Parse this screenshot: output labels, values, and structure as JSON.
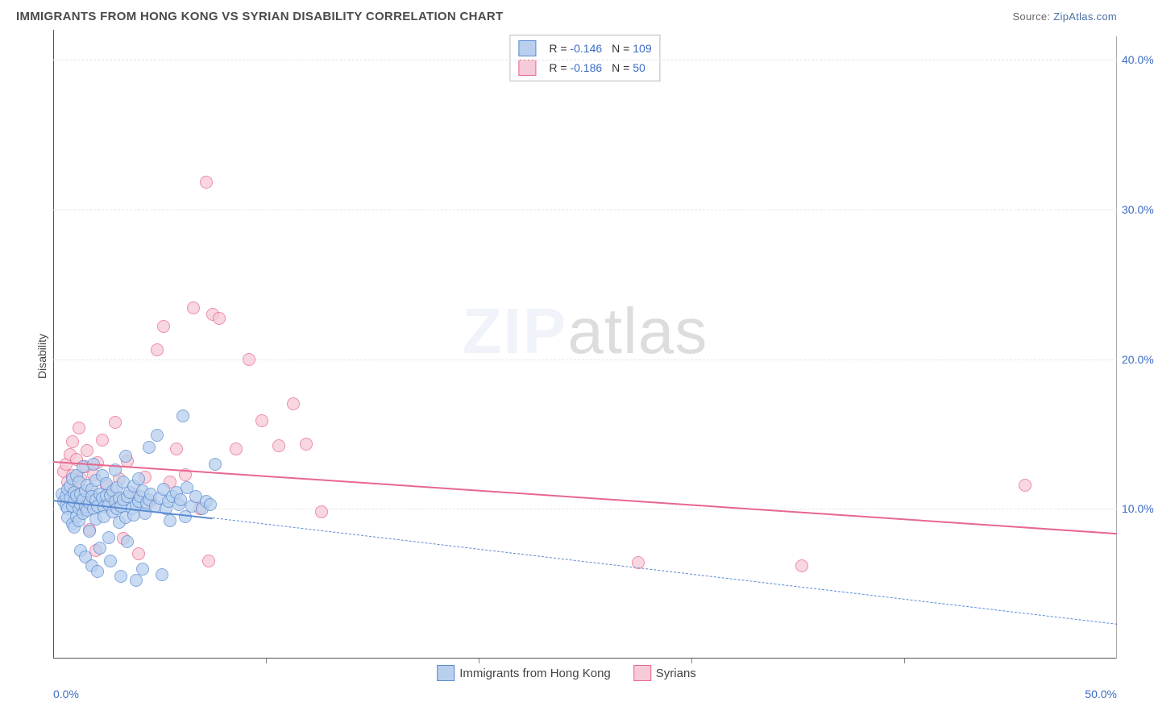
{
  "header": {
    "title": "IMMIGRANTS FROM HONG KONG VS SYRIAN DISABILITY CORRELATION CHART",
    "source_prefix": "Source: ",
    "source_link": "ZipAtlas.com"
  },
  "watermark": {
    "zip": "ZIP",
    "atlas": "atlas"
  },
  "axes": {
    "ylabel": "Disability",
    "xlim": [
      0,
      50
    ],
    "ylim": [
      0,
      42
    ],
    "yticks": [
      10,
      20,
      30,
      40
    ],
    "ytick_labels": [
      "10.0%",
      "20.0%",
      "30.0%",
      "40.0%"
    ],
    "xtick_minor_positions": [
      10,
      20,
      30,
      40
    ],
    "x_left_label": "0.0%",
    "x_right_label": "50.0%",
    "grid_color": "#e5e5e5",
    "tick_color": "#3c6cc4"
  },
  "series": {
    "hongkong": {
      "label": "Immigrants from Hong Kong",
      "color_fill": "#b8d0ee",
      "color_stroke": "#5b8bd0",
      "marker_size": 16,
      "marker_opacity": 0.75,
      "R": "-0.146",
      "N": "109",
      "trend": {
        "x1": 0,
        "y1": 10.6,
        "x2": 7.5,
        "y2": 9.4,
        "ext_x2": 50,
        "ext_y2": 2.3,
        "color": "#5b8bd0",
        "width": 2
      },
      "points": [
        [
          0.4,
          11.0
        ],
        [
          0.5,
          10.5
        ],
        [
          0.6,
          10.2
        ],
        [
          0.6,
          10.8
        ],
        [
          0.7,
          11.3
        ],
        [
          0.7,
          10.0
        ],
        [
          0.7,
          9.4
        ],
        [
          0.8,
          10.7
        ],
        [
          0.8,
          11.5
        ],
        [
          0.9,
          12.0
        ],
        [
          0.9,
          10.2
        ],
        [
          0.9,
          9.0
        ],
        [
          1.0,
          10.5
        ],
        [
          1.0,
          11.1
        ],
        [
          1.0,
          8.8
        ],
        [
          1.1,
          9.5
        ],
        [
          1.1,
          10.9
        ],
        [
          1.1,
          12.2
        ],
        [
          1.2,
          10.0
        ],
        [
          1.2,
          11.8
        ],
        [
          1.2,
          9.2
        ],
        [
          1.3,
          10.3
        ],
        [
          1.3,
          7.2
        ],
        [
          1.3,
          11.0
        ],
        [
          1.4,
          12.8
        ],
        [
          1.4,
          10.6
        ],
        [
          1.4,
          9.7
        ],
        [
          1.5,
          11.2
        ],
        [
          1.5,
          6.8
        ],
        [
          1.5,
          10.1
        ],
        [
          1.6,
          9.9
        ],
        [
          1.6,
          11.6
        ],
        [
          1.7,
          10.4
        ],
        [
          1.7,
          8.5
        ],
        [
          1.8,
          11.3
        ],
        [
          1.8,
          6.2
        ],
        [
          1.8,
          10.8
        ],
        [
          1.9,
          10.0
        ],
        [
          1.9,
          13.0
        ],
        [
          2.0,
          9.3
        ],
        [
          2.0,
          11.9
        ],
        [
          2.0,
          10.6
        ],
        [
          2.1,
          5.8
        ],
        [
          2.1,
          10.2
        ],
        [
          2.2,
          11.0
        ],
        [
          2.2,
          7.4
        ],
        [
          2.3,
          10.7
        ],
        [
          2.3,
          12.2
        ],
        [
          2.4,
          10.1
        ],
        [
          2.4,
          9.5
        ],
        [
          2.5,
          10.9
        ],
        [
          2.5,
          11.7
        ],
        [
          2.6,
          8.1
        ],
        [
          2.6,
          10.3
        ],
        [
          2.7,
          6.5
        ],
        [
          2.7,
          10.9
        ],
        [
          2.8,
          11.2
        ],
        [
          2.8,
          9.8
        ],
        [
          2.9,
          10.5
        ],
        [
          2.9,
          12.6
        ],
        [
          3.0,
          10.0
        ],
        [
          3.0,
          11.4
        ],
        [
          3.1,
          9.1
        ],
        [
          3.1,
          10.7
        ],
        [
          3.2,
          5.5
        ],
        [
          3.2,
          10.2
        ],
        [
          3.3,
          11.8
        ],
        [
          3.3,
          10.6
        ],
        [
          3.4,
          9.4
        ],
        [
          3.4,
          13.5
        ],
        [
          3.5,
          10.8
        ],
        [
          3.5,
          7.8
        ],
        [
          3.6,
          11.1
        ],
        [
          3.7,
          10.0
        ],
        [
          3.8,
          11.5
        ],
        [
          3.8,
          9.6
        ],
        [
          3.9,
          5.2
        ],
        [
          3.9,
          10.3
        ],
        [
          4.0,
          12.0
        ],
        [
          4.0,
          10.5
        ],
        [
          4.1,
          10.8
        ],
        [
          4.2,
          6.0
        ],
        [
          4.2,
          11.2
        ],
        [
          4.3,
          9.7
        ],
        [
          4.4,
          10.4
        ],
        [
          4.5,
          14.1
        ],
        [
          4.5,
          10.6
        ],
        [
          4.6,
          11.0
        ],
        [
          4.8,
          10.2
        ],
        [
          4.9,
          14.9
        ],
        [
          5.0,
          10.7
        ],
        [
          5.1,
          5.6
        ],
        [
          5.2,
          11.3
        ],
        [
          5.3,
          10.0
        ],
        [
          5.4,
          10.5
        ],
        [
          5.5,
          9.2
        ],
        [
          5.6,
          10.8
        ],
        [
          5.8,
          11.1
        ],
        [
          5.9,
          10.3
        ],
        [
          6.0,
          10.6
        ],
        [
          6.2,
          9.5
        ],
        [
          6.3,
          11.4
        ],
        [
          6.5,
          10.2
        ],
        [
          6.7,
          10.8
        ],
        [
          7.0,
          10.0
        ],
        [
          7.2,
          10.5
        ],
        [
          7.4,
          10.3
        ],
        [
          7.6,
          13.0
        ],
        [
          6.1,
          16.2
        ]
      ]
    },
    "syrian": {
      "label": "Syrians",
      "color_fill": "#f6cad6",
      "color_stroke": "#e7678f",
      "marker_size": 16,
      "marker_opacity": 0.75,
      "R": "-0.186",
      "N": "50",
      "trend": {
        "x1": 0,
        "y1": 13.2,
        "x2": 50,
        "y2": 8.4,
        "color": "#e7678f",
        "width": 2.5
      },
      "points": [
        [
          0.5,
          12.5
        ],
        [
          0.6,
          13.0
        ],
        [
          0.7,
          11.8
        ],
        [
          0.8,
          13.6
        ],
        [
          0.9,
          14.5
        ],
        [
          0.9,
          12.2
        ],
        [
          1.0,
          11.2
        ],
        [
          1.1,
          13.3
        ],
        [
          1.2,
          15.4
        ],
        [
          1.3,
          12.0
        ],
        [
          1.4,
          10.1
        ],
        [
          1.5,
          12.8
        ],
        [
          1.6,
          13.9
        ],
        [
          1.7,
          8.6
        ],
        [
          1.8,
          11.0
        ],
        [
          1.9,
          12.3
        ],
        [
          2.0,
          7.2
        ],
        [
          2.1,
          13.1
        ],
        [
          2.3,
          14.6
        ],
        [
          2.5,
          11.5
        ],
        [
          2.7,
          10.3
        ],
        [
          2.9,
          15.8
        ],
        [
          3.1,
          12.0
        ],
        [
          3.3,
          8.0
        ],
        [
          3.5,
          13.2
        ],
        [
          3.8,
          11.0
        ],
        [
          4.0,
          7.0
        ],
        [
          4.3,
          12.1
        ],
        [
          4.6,
          10.5
        ],
        [
          4.9,
          20.6
        ],
        [
          5.2,
          22.2
        ],
        [
          5.5,
          11.8
        ],
        [
          5.8,
          14.0
        ],
        [
          6.2,
          12.3
        ],
        [
          6.6,
          23.4
        ],
        [
          6.9,
          10.0
        ],
        [
          7.2,
          31.8
        ],
        [
          7.5,
          23.0
        ],
        [
          7.8,
          22.7
        ],
        [
          7.3,
          6.5
        ],
        [
          8.6,
          14.0
        ],
        [
          9.2,
          20.0
        ],
        [
          9.8,
          15.9
        ],
        [
          10.6,
          14.2
        ],
        [
          11.3,
          17.0
        ],
        [
          11.9,
          14.3
        ],
        [
          12.6,
          9.8
        ],
        [
          27.5,
          6.4
        ],
        [
          35.2,
          6.2
        ],
        [
          45.7,
          11.6
        ]
      ]
    }
  },
  "legend_bottom": {
    "items": [
      {
        "label": "Immigrants from Hong Kong",
        "fill": "#b8d0ee",
        "stroke": "#5b8bd0"
      },
      {
        "label": "Syrians",
        "fill": "#f6cad6",
        "stroke": "#e7678f"
      }
    ]
  }
}
